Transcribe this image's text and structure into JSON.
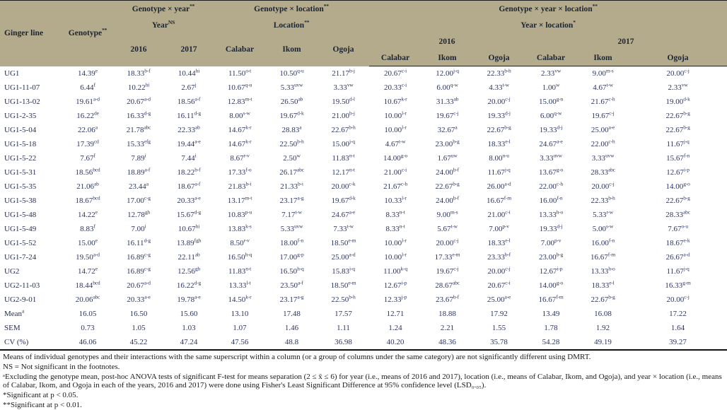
{
  "table": {
    "header": {
      "ginger_line": "Ginger line",
      "genotype": "Genotype^**",
      "gy_title": "Genotype × year^**",
      "gy_sub": "Year^NS",
      "gl_title": "Genotype × location^**",
      "gl_sub": "Location^**",
      "gyl_title": "Genotype × year × location^**",
      "gyl_sub": "Year × location^*",
      "y2016": "2016",
      "y2017": "2017",
      "loc": [
        "Calabar",
        "Ikom",
        "Ogoja"
      ],
      "yl2016": "2016",
      "yl2017": "2017",
      "yl_cities": [
        "Calabar",
        "Ikom",
        "Ogoja",
        "Calabar",
        "Ikom",
        "Ogoja"
      ]
    },
    "rows": [
      {
        "label": "UG1",
        "values": [
          "14.39^e",
          "18.33^b-f",
          "10.44^hi",
          "11.50^o-t",
          "10.50^q-u",
          "21.17^b-j",
          "20.67^c-i",
          "12.00^j-q",
          "22.33^b-h",
          "2.33^vw",
          "9.00^m-s",
          "20.00^c-j"
        ]
      },
      {
        "label": "UG1-11-07",
        "values": [
          "6.44^f",
          "10.22^hi",
          "2.67^j",
          "10.67^q-u",
          "5.33^uvw",
          "3.33^vw",
          "20.33^c-i",
          "6.00^q-w",
          "4.33^t-w",
          "1.00^w",
          "4.67^t-w",
          "2.33^vw"
        ]
      },
      {
        "label": "UG1-13-02",
        "values": [
          "19.61^a-d",
          "20.67^a-d",
          "18.56^a-f",
          "12.83^m-t",
          "26.50^ab",
          "19.50^d-l",
          "10.67^k-r",
          "31.33^ab",
          "20.00^c-j",
          "15.00^g-n",
          "21.67^c-h",
          "19.00^d-k"
        ]
      },
      {
        "label": "UG1-2-35",
        "values": [
          "16.22^de",
          "16.33^d-g",
          "16.11^d-g",
          "8.00^s-w",
          "19.67^d-k",
          "21.00^b-j",
          "10.00^l-r",
          "19.67^c-j",
          "19.33^d-j",
          "6.00^q-w",
          "19.67^c-j",
          "22.67^b-g"
        ]
      },
      {
        "label": "UG1-5-04",
        "values": [
          "22.06^a",
          "21.78^abc",
          "22.33^ab",
          "14.67^k-r",
          "28.83^a",
          "22.67^b-h",
          "10.00^l-r",
          "32.67^a",
          "22.67^b-g",
          "19.33^d-j",
          "25.00^a-e",
          "22.67^b-g"
        ]
      },
      {
        "label": "UG1-5-18",
        "values": [
          "17.39^cd",
          "15.33^efg",
          "19.44^a-e",
          "14.67^k-r",
          "22.50^b-h",
          "15.00^j-q",
          "4.67^t-w",
          "23.00^b-g",
          "18.33^e-l",
          "24.67^a-e",
          "22.00^c-h",
          "11.67^j-q"
        ]
      },
      {
        "label": "UG1-5-22",
        "values": [
          "7.67^f",
          "7.89^i",
          "7.44^i",
          "8.67^r-v",
          "2.50^w",
          "11.83^n-t",
          "14.00^g-o",
          "1.67^uw",
          "8.00^n-u",
          "3.33^uvw",
          "3.33^uvw",
          "15.67^f-n"
        ]
      },
      {
        "label": "UG1-5-31",
        "values": [
          "18.56^bcd",
          "18.89^a-f",
          "18.22^b-f",
          "17.33^f-o",
          "26.17^abc",
          "12.17^n-t",
          "21.00^c-i",
          "24.00^b-f",
          "11.67^j-q",
          "13.67^g-o",
          "28.33^abc",
          "12.67^i-p"
        ]
      },
      {
        "label": "UG1-5-35",
        "values": [
          "21.06^ab",
          "23.44^a",
          "18.67^a-f",
          "21.83^b-i",
          "21.33^b-i",
          "20.00^c-k",
          "21.67^c-h",
          "22.67^b-g",
          "26.00^a-d",
          "22.00^c-h",
          "20.00^c-j",
          "14.00^g-o"
        ]
      },
      {
        "label": "UG1-5-38",
        "values": [
          "18.67^bcd",
          "17.00^c-g",
          "20.33^a-e",
          "13.17^m-t",
          "23.17^a-g",
          "19.67^d-k",
          "10.33^l-r",
          "24.00^b-f",
          "16.67^f-m",
          "16.00^f-n",
          "22.33^b-h",
          "22.67^b-g"
        ]
      },
      {
        "label": "UG1-5-48",
        "values": [
          "14.22^e",
          "12.78^gh",
          "15.67^d-g",
          "10.83^p-u",
          "7.17^t-w",
          "24.67^a-e",
          "8.33^n-t",
          "9.00^m-s",
          "21.00^c-i",
          "13.33^h-o",
          "5.33^r-w",
          "28.33^abc"
        ]
      },
      {
        "label": "UG1-5-49",
        "values": [
          "8.83^f",
          "7.00^i",
          "10.67^hi",
          "13.83^k-s",
          "5.33^uvw",
          "7.33^t-w",
          "8.33^n-t",
          "5.67^t-w",
          "7.00^p-v",
          "19.33^d-j",
          "5.00^s-w",
          "7.67^o-u"
        ]
      },
      {
        "label": "UG1-5-52",
        "values": [
          "15.00^e",
          "16.11^d-g",
          "13.89^fgh",
          "8.50^r-v",
          "18.00^f-n",
          "18.50^e-m",
          "10.00^l-r",
          "20.00^c-j",
          "18.33^e-l",
          "7.00^p-v",
          "16.00^f-n",
          "18.67^e-k"
        ]
      },
      {
        "label": "UG1-7-24",
        "values": [
          "19.50^a-d",
          "16.89^c-g",
          "22.11^ab",
          "16.50^h-q",
          "17.00^g-p",
          "25.00^a-d",
          "10.00^l-r",
          "17.33^e-m",
          "23.33^b-f",
          "23.00^b-g",
          "16.67^f-m",
          "26.67^a-d"
        ]
      },
      {
        "label": "UG2",
        "values": [
          "14.72^e",
          "16.89^c-g",
          "12.56^gh",
          "11.83^n-t",
          "16.50^h-q",
          "15.83^i-q",
          "11.00^k-q",
          "19.67^c-j",
          "20.00^c-j",
          "12.67^i-p",
          "13.33^h-o",
          "11.67^j-q"
        ]
      },
      {
        "label": "UG2-11-03",
        "values": [
          "18.44^bcd",
          "20.67^a-d",
          "16.22^d-g",
          "13.33^l-t",
          "23.50^a-f",
          "18.50^e-m",
          "12.67^i-p",
          "28.67^abc",
          "20.67^c-i",
          "14.00^g-o",
          "18.33^e-l",
          "16.33^g-m"
        ]
      },
      {
        "label": "UG2-9-01",
        "values": [
          "20.06^abc",
          "20.33^a-e",
          "19.78^a-e",
          "14.50^k-r",
          "23.17^a-g",
          "22.50^b-h",
          "12.33^j-p",
          "23.67^b-f",
          "25.00^a-e",
          "16.67^f-m",
          "22.67^b-g",
          "20.00^c-j"
        ]
      },
      {
        "label": "Mean^a",
        "values": [
          "16.05",
          "16.50",
          "15.60",
          "13.10",
          "17.48",
          "17.57",
          "12.71",
          "18.88",
          "17.92",
          "13.49",
          "16.08",
          "17.22"
        ]
      },
      {
        "label": "SEM",
        "values": [
          "0.73",
          "1.05",
          "1.03",
          "1.07",
          "1.46",
          "1.11",
          "1.24",
          "2.21",
          "1.55",
          "1.78",
          "1.92",
          "1.64"
        ]
      },
      {
        "label": "CV (%)",
        "values": [
          "46.06",
          "45.22",
          "47.24",
          "47.56",
          "48.8",
          "36.98",
          "40.20",
          "48.36",
          "35.78",
          "54.28",
          "49.19",
          "39.27"
        ]
      }
    ]
  },
  "footnotes": [
    "Means of individual genotypes and their interactions with the same superscript within a column (or a group of columns under the same category) are not significantly different using DMRT.",
    "NS = Not significant in the footnotes.",
    "ᵃExcluding the genotype mean, post-hoc ANOVA tests of significant F-test for means separation (2 ≤ x̄ ≤ 6) for year (i.e., means of 2016 and 2017), location (i.e., means of Calabar, Ikom, and Ogoja), and year × location (i.e., means of Calabar, Ikom, and Ogoja in each of the years, 2016 and 2017) were done using Fisher's Least Significant Difference at 95% confidence level (LSD₀.₀₅).",
    "*Significant at p < 0.05.",
    "**Significant at p < 0.01."
  ],
  "colors": {
    "header_bg": "#b3ab8b",
    "data_text": "#2b3560",
    "footnote_text": "#1a1a1a"
  }
}
